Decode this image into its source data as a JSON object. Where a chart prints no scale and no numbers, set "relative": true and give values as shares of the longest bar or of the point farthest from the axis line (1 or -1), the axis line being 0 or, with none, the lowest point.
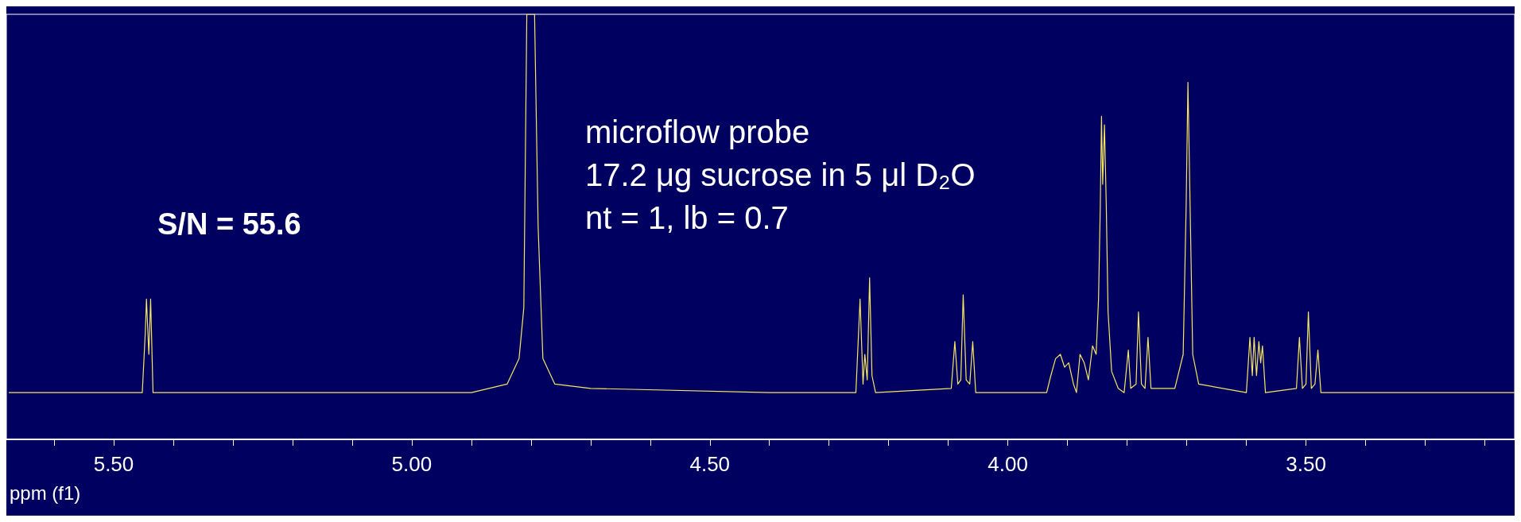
{
  "chart_data": {
    "type": "line",
    "relative": true,
    "xlabel": "ppm (f1)",
    "marker": "none",
    "grid": false,
    "annotations": [
      "S/N = 55.6",
      "microflow probe",
      "17.2 μg sucrose in 5 μl D₂O",
      "nt = 1, lb = 0.7"
    ],
    "xlim": [
      5.68,
      3.15
    ],
    "xticks": [
      {
        "value": 5.6,
        "label": null
      },
      {
        "value": 5.5,
        "label": "5.50"
      },
      {
        "value": 5.4,
        "label": null
      },
      {
        "value": 5.3,
        "label": null
      },
      {
        "value": 5.2,
        "label": null
      },
      {
        "value": 5.1,
        "label": null
      },
      {
        "value": 5.0,
        "label": "5.00"
      },
      {
        "value": 4.9,
        "label": null
      },
      {
        "value": 4.8,
        "label": null
      },
      {
        "value": 4.7,
        "label": null
      },
      {
        "value": 4.6,
        "label": null
      },
      {
        "value": 4.5,
        "label": "4.50"
      },
      {
        "value": 4.4,
        "label": null
      },
      {
        "value": 4.3,
        "label": null
      },
      {
        "value": 4.2,
        "label": null
      },
      {
        "value": 4.1,
        "label": null
      },
      {
        "value": 4.0,
        "label": "4.00"
      },
      {
        "value": 3.9,
        "label": null
      },
      {
        "value": 3.8,
        "label": null
      },
      {
        "value": 3.7,
        "label": null
      },
      {
        "value": 3.6,
        "label": null
      },
      {
        "value": 3.5,
        "label": "3.50"
      },
      {
        "value": 3.4,
        "label": null
      },
      {
        "value": 3.3,
        "label": null
      },
      {
        "value": 3.2,
        "label": null
      }
    ],
    "series": [
      {
        "color": "#f5e663",
        "x": [
          5.676,
          5.55,
          5.452,
          5.447,
          5.445,
          5.441,
          5.438,
          5.434,
          5.2,
          4.9,
          4.84,
          4.82,
          4.812,
          4.807,
          4.794,
          4.788,
          4.78,
          4.76,
          4.7,
          4.4,
          4.255,
          4.248,
          4.243,
          4.24,
          4.236,
          4.232,
          4.228,
          4.222,
          4.095,
          4.089,
          4.084,
          4.079,
          4.075,
          4.07,
          4.064,
          4.059,
          4.054,
          3.935,
          3.928,
          3.92,
          3.912,
          3.905,
          3.898,
          3.89,
          3.885,
          3.879,
          3.872,
          3.865,
          3.858,
          3.852,
          3.848,
          3.845,
          3.843,
          3.841,
          3.838,
          3.835,
          3.832,
          3.826,
          3.815,
          3.805,
          3.798,
          3.794,
          3.785,
          3.781,
          3.776,
          3.77,
          3.765,
          3.76,
          3.72,
          3.706,
          3.701,
          3.698,
          3.695,
          3.69,
          3.68,
          3.6,
          3.594,
          3.59,
          3.587,
          3.583,
          3.579,
          3.576,
          3.573,
          3.568,
          3.516,
          3.511,
          3.506,
          3.5,
          3.496,
          3.491,
          3.485,
          3.48,
          3.475,
          3.3,
          3.15
        ],
        "values": [
          0.11,
          0.11,
          0.11,
          0.25,
          0.33,
          0.2,
          0.33,
          0.11,
          0.11,
          0.11,
          0.13,
          0.19,
          0.31,
          1.0,
          1.0,
          0.5,
          0.19,
          0.13,
          0.12,
          0.11,
          0.11,
          0.33,
          0.13,
          0.2,
          0.14,
          0.38,
          0.15,
          0.11,
          0.12,
          0.23,
          0.13,
          0.14,
          0.34,
          0.14,
          0.13,
          0.23,
          0.11,
          0.11,
          0.15,
          0.19,
          0.2,
          0.17,
          0.18,
          0.13,
          0.11,
          0.2,
          0.18,
          0.14,
          0.22,
          0.2,
          0.33,
          0.55,
          0.76,
          0.6,
          0.74,
          0.55,
          0.3,
          0.16,
          0.12,
          0.11,
          0.21,
          0.12,
          0.13,
          0.3,
          0.13,
          0.12,
          0.24,
          0.12,
          0.12,
          0.2,
          0.55,
          0.84,
          0.6,
          0.2,
          0.13,
          0.11,
          0.24,
          0.15,
          0.24,
          0.15,
          0.23,
          0.18,
          0.22,
          0.11,
          0.12,
          0.24,
          0.12,
          0.13,
          0.3,
          0.12,
          0.13,
          0.21,
          0.11,
          0.11,
          0.11
        ]
      }
    ]
  }
}
